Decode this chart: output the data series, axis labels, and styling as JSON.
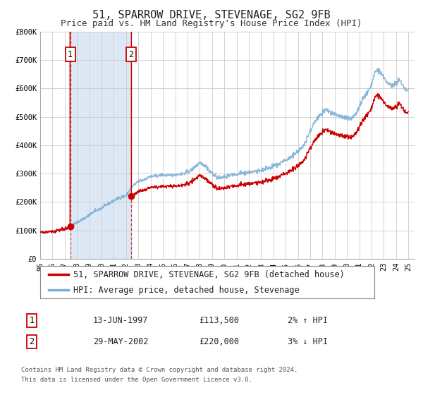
{
  "title": "51, SPARROW DRIVE, STEVENAGE, SG2 9FB",
  "subtitle": "Price paid vs. HM Land Registry's House Price Index (HPI)",
  "background_color": "#ffffff",
  "plot_bg_color": "#ffffff",
  "grid_color": "#cccccc",
  "shade_color": "#dce8f5",
  "ylim": [
    0,
    800000
  ],
  "yticks": [
    0,
    100000,
    200000,
    300000,
    400000,
    500000,
    600000,
    700000,
    800000
  ],
  "ytick_labels": [
    "£0",
    "£100K",
    "£200K",
    "£300K",
    "£400K",
    "£500K",
    "£600K",
    "£700K",
    "£800K"
  ],
  "xlim_start": 1995.0,
  "xlim_end": 2025.5,
  "xtick_years": [
    1995,
    1996,
    1997,
    1998,
    1999,
    2000,
    2001,
    2002,
    2003,
    2004,
    2005,
    2006,
    2007,
    2008,
    2009,
    2010,
    2011,
    2012,
    2013,
    2014,
    2015,
    2016,
    2017,
    2018,
    2019,
    2020,
    2021,
    2022,
    2023,
    2024,
    2025
  ],
  "sale1_x": 1997.45,
  "sale1_y": 113500,
  "sale1_label": "1",
  "sale2_x": 2002.41,
  "sale2_y": 220000,
  "sale2_label": "2",
  "marker_color": "#cc0000",
  "line_color_property": "#cc0000",
  "line_color_hpi": "#7bafd4",
  "legend_label_property": "51, SPARROW DRIVE, STEVENAGE, SG2 9FB (detached house)",
  "legend_label_hpi": "HPI: Average price, detached house, Stevenage",
  "annotation1_date": "13-JUN-1997",
  "annotation1_price": "£113,500",
  "annotation1_hpi": "2% ↑ HPI",
  "annotation2_date": "29-MAY-2002",
  "annotation2_price": "£220,000",
  "annotation2_hpi": "3% ↓ HPI",
  "footnote_line1": "Contains HM Land Registry data © Crown copyright and database right 2024.",
  "footnote_line2": "This data is licensed under the Open Government Licence v3.0.",
  "title_fontsize": 11,
  "subtitle_fontsize": 9,
  "tick_fontsize": 7.5,
  "legend_fontsize": 8.5,
  "annotation_fontsize": 8.5,
  "footnote_fontsize": 6.5,
  "hpi_anchors_x": [
    1995.0,
    1996.0,
    1997.0,
    1997.5,
    1998.0,
    1998.5,
    1999.0,
    1999.5,
    2000.0,
    2000.5,
    2001.0,
    2001.5,
    2002.0,
    2002.5,
    2003.0,
    2003.5,
    2004.0,
    2004.5,
    2005.0,
    2005.5,
    2006.0,
    2006.5,
    2007.0,
    2007.5,
    2008.0,
    2008.5,
    2009.0,
    2009.5,
    2010.0,
    2010.5,
    2011.0,
    2011.5,
    2012.0,
    2012.5,
    2013.0,
    2013.5,
    2014.0,
    2014.5,
    2015.0,
    2015.5,
    2016.0,
    2016.5,
    2017.0,
    2017.5,
    2018.0,
    2018.3,
    2018.7,
    2019.0,
    2019.5,
    2020.0,
    2020.3,
    2020.7,
    2021.0,
    2021.3,
    2021.7,
    2022.0,
    2022.3,
    2022.5,
    2022.8,
    2023.0,
    2023.3,
    2023.7,
    2024.0,
    2024.3,
    2024.7,
    2025.0
  ],
  "hpi_anchors_y": [
    93000,
    97000,
    105000,
    115000,
    128000,
    140000,
    155000,
    168000,
    178000,
    192000,
    205000,
    215000,
    222000,
    255000,
    272000,
    280000,
    290000,
    292000,
    295000,
    293000,
    296000,
    298000,
    305000,
    318000,
    340000,
    325000,
    300000,
    285000,
    288000,
    295000,
    298000,
    302000,
    305000,
    308000,
    312000,
    318000,
    325000,
    335000,
    348000,
    360000,
    378000,
    400000,
    450000,
    490000,
    515000,
    525000,
    515000,
    508000,
    502000,
    495000,
    490000,
    508000,
    535000,
    565000,
    590000,
    615000,
    658000,
    665000,
    648000,
    635000,
    618000,
    610000,
    620000,
    630000,
    600000,
    595000
  ]
}
